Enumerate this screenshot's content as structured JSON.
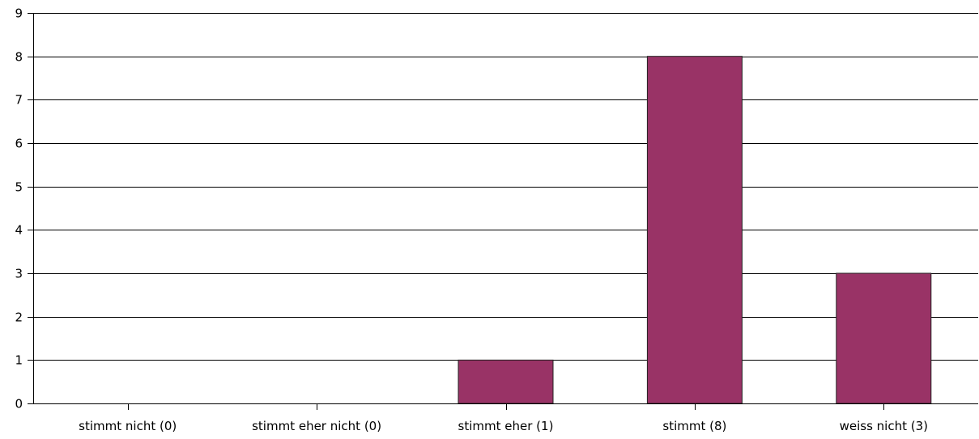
{
  "chart_data": {
    "type": "bar",
    "categories": [
      "stimmt nicht (0)",
      "stimmt eher nicht (0)",
      "stimmt eher (1)",
      "stimmt  (8)",
      "weiss nicht (3)"
    ],
    "values": [
      0,
      0,
      1,
      8,
      3
    ],
    "ylim": [
      0,
      9
    ],
    "yticks": [
      0,
      1,
      2,
      3,
      4,
      5,
      6,
      7,
      8,
      9
    ],
    "grid": true,
    "title": "",
    "xlabel": "",
    "ylabel": "",
    "colors": {
      "bar": "#993366",
      "bar_stroke": "#222222",
      "grid": "#000000"
    }
  }
}
